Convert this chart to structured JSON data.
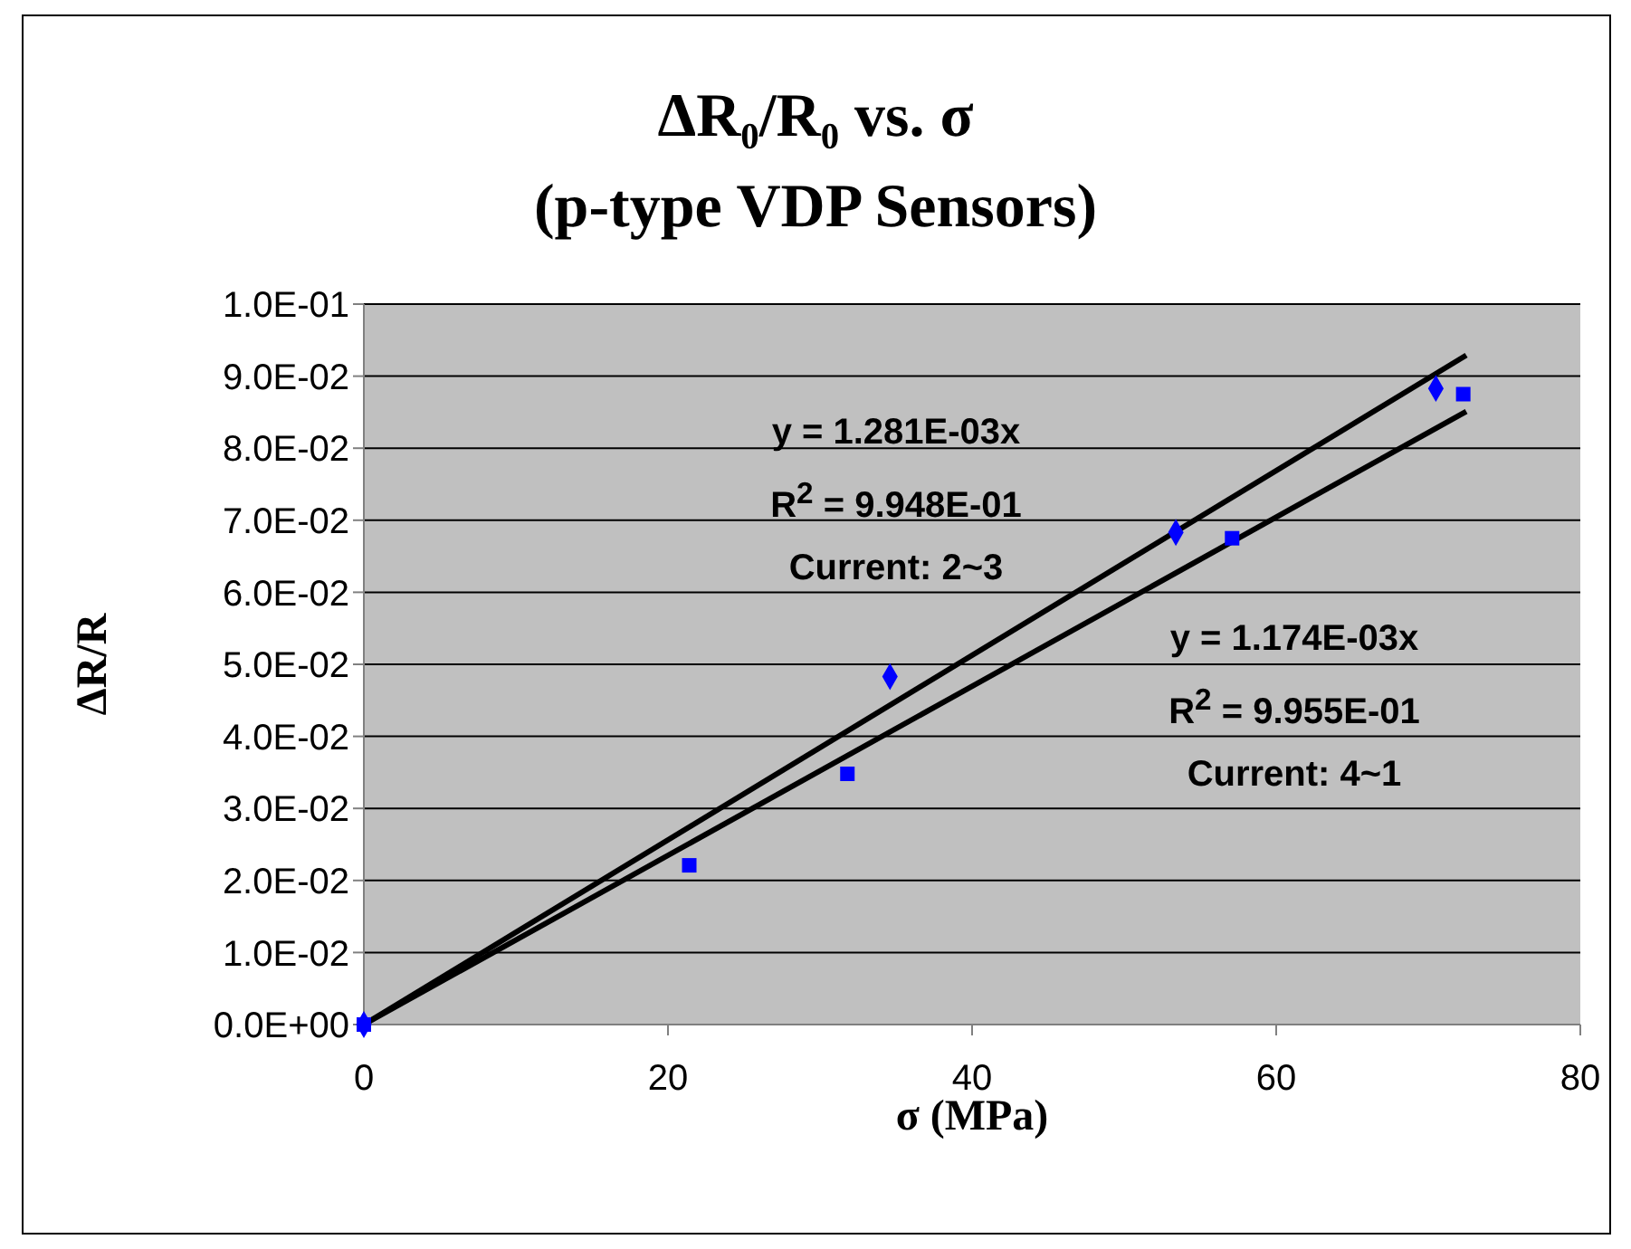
{
  "chart_data": {
    "type": "scatter",
    "title": "ΔR₀/R₀ vs. σ",
    "subtitle": "(p-type VDP Sensors)",
    "xlabel": "σ (MPa)",
    "ylabel": "ΔR/R",
    "xlim": [
      0,
      80
    ],
    "xticks": [
      0,
      20,
      40,
      60,
      80
    ],
    "ylim": [
      0,
      0.1
    ],
    "yticks": [
      {
        "value": 0,
        "label": "0.0E+00"
      },
      {
        "value": 0.01,
        "label": "1.0E-02"
      },
      {
        "value": 0.02,
        "label": "2.0E-02"
      },
      {
        "value": 0.03,
        "label": "3.0E-02"
      },
      {
        "value": 0.04,
        "label": "4.0E-02"
      },
      {
        "value": 0.05,
        "label": "5.0E-02"
      },
      {
        "value": 0.06,
        "label": "6.0E-02"
      },
      {
        "value": 0.07,
        "label": "7.0E-02"
      },
      {
        "value": 0.08,
        "label": "8.0E-02"
      },
      {
        "value": 0.09,
        "label": "9.0E-02"
      },
      {
        "value": 0.1,
        "label": "1.0E-01"
      }
    ],
    "grid": "y",
    "series": [
      {
        "marker": "diamond",
        "color": "#0000ff",
        "x": [
          0,
          34.6,
          53.4,
          70.5
        ],
        "values": [
          0,
          0.0483,
          0.0683,
          0.0883
        ]
      },
      {
        "marker": "square",
        "color": "#0000ff",
        "x": [
          0,
          21.4,
          31.8,
          57.1,
          72.3
        ],
        "values": [
          0,
          0.0221,
          0.0348,
          0.0675,
          0.0875
        ]
      },
      {
        "type": "line",
        "marker": "none",
        "color": "#000000",
        "x": [
          0,
          72.5
        ],
        "values": [
          0,
          0.0929
        ]
      },
      {
        "type": "line",
        "marker": "none",
        "color": "#000000",
        "x": [
          0,
          72.5
        ],
        "values": [
          0,
          0.0851
        ]
      }
    ],
    "annotations": [
      "y = 1.281E-03x\nR$^{2}$ = 9.948E-01\nCurrent: 2~3",
      "y = 1.174E-03x\nR$^{2}$ = 9.955E-01\nCurrent: 4~1"
    ]
  }
}
